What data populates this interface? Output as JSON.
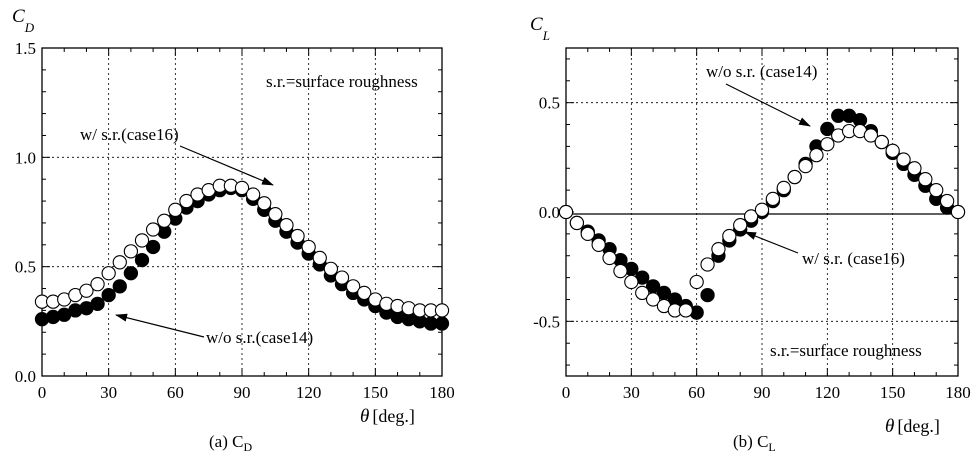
{
  "chart_data": [
    {
      "type": "scatter",
      "panel": "a",
      "caption_main": "(a) C",
      "caption_sub": "D",
      "ylabel_main": "C",
      "ylabel_sub": "D",
      "xlabel_symbol": "θ",
      "xlabel_unit": "[deg.]",
      "xlim": [
        0,
        180
      ],
      "ylim": [
        0,
        1.5
      ],
      "xticks": [
        0,
        30,
        60,
        90,
        120,
        150,
        180
      ],
      "xtick_labels": [
        "0",
        "30",
        "60",
        "90",
        "120",
        "150",
        "180"
      ],
      "yticks": [
        0,
        0.5,
        1.0,
        1.5
      ],
      "ytick_labels": [
        "0.0",
        "0.5",
        "1.0",
        "1.5"
      ],
      "grid": true,
      "zero_line": false,
      "annotations": {
        "legend_note": "s.r.=surface roughness",
        "open_label": "w/  s.r.(case16)",
        "filled_label": "w/o  s.r.(case14)"
      },
      "series": [
        {
          "marker": "filled",
          "x": [
            0,
            5,
            10,
            15,
            20,
            25,
            30,
            35,
            40,
            45,
            50,
            55,
            60,
            65,
            70,
            75,
            80,
            85,
            90,
            95,
            100,
            105,
            110,
            115,
            120,
            125,
            130,
            135,
            140,
            145,
            150,
            155,
            160,
            165,
            170,
            175,
            180
          ],
          "y": [
            0.26,
            0.27,
            0.28,
            0.3,
            0.31,
            0.33,
            0.37,
            0.41,
            0.47,
            0.53,
            0.59,
            0.66,
            0.72,
            0.77,
            0.8,
            0.83,
            0.85,
            0.86,
            0.85,
            0.81,
            0.76,
            0.71,
            0.66,
            0.61,
            0.56,
            0.51,
            0.46,
            0.42,
            0.38,
            0.35,
            0.32,
            0.29,
            0.27,
            0.26,
            0.25,
            0.24,
            0.24
          ]
        },
        {
          "marker": "open",
          "x": [
            0,
            5,
            10,
            15,
            20,
            25,
            30,
            35,
            40,
            45,
            50,
            55,
            60,
            65,
            70,
            75,
            80,
            85,
            90,
            95,
            100,
            105,
            110,
            115,
            120,
            125,
            130,
            135,
            140,
            145,
            150,
            155,
            160,
            165,
            170,
            175,
            180
          ],
          "y": [
            0.34,
            0.34,
            0.35,
            0.37,
            0.39,
            0.42,
            0.47,
            0.52,
            0.57,
            0.62,
            0.67,
            0.71,
            0.76,
            0.8,
            0.83,
            0.85,
            0.87,
            0.87,
            0.86,
            0.83,
            0.79,
            0.74,
            0.69,
            0.64,
            0.59,
            0.54,
            0.49,
            0.45,
            0.41,
            0.38,
            0.35,
            0.33,
            0.32,
            0.31,
            0.3,
            0.3,
            0.3
          ]
        }
      ]
    },
    {
      "type": "scatter",
      "panel": "b",
      "caption_main": "(b) C",
      "caption_sub": "L",
      "ylabel_main": "C",
      "ylabel_sub": "L",
      "xlabel_symbol": "θ",
      "xlabel_unit": "[deg.]",
      "xlim": [
        0,
        180
      ],
      "ylim": [
        -0.75,
        0.75
      ],
      "xticks": [
        0,
        30,
        60,
        90,
        120,
        150,
        180
      ],
      "xtick_labels": [
        "0",
        "30",
        "60",
        "90",
        "120",
        "150",
        "180"
      ],
      "yticks": [
        -0.5,
        0.0,
        0.5
      ],
      "ytick_labels": [
        "-0.5",
        "0.0",
        "0.5"
      ],
      "grid": true,
      "zero_line": true,
      "annotations": {
        "legend_note": "s.r.=surface roughness",
        "open_label": "w/  s.r. (case16)",
        "filled_label": "w/o  s.r. (case14)"
      },
      "series": [
        {
          "marker": "filled",
          "x": [
            0,
            5,
            10,
            15,
            20,
            25,
            30,
            35,
            40,
            45,
            50,
            55,
            60,
            65,
            70,
            75,
            80,
            85,
            90,
            95,
            100,
            105,
            110,
            115,
            120,
            125,
            130,
            135,
            140,
            145,
            150,
            155,
            160,
            165,
            170,
            175,
            180
          ],
          "y": [
            0.0,
            -0.05,
            -0.09,
            -0.13,
            -0.17,
            -0.22,
            -0.26,
            -0.3,
            -0.34,
            -0.37,
            -0.4,
            -0.43,
            -0.46,
            -0.38,
            -0.2,
            -0.13,
            -0.08,
            -0.04,
            0.0,
            0.05,
            0.1,
            0.16,
            0.22,
            0.3,
            0.38,
            0.44,
            0.44,
            0.42,
            0.37,
            0.32,
            0.27,
            0.22,
            0.17,
            0.12,
            0.06,
            0.02,
            0.0
          ]
        },
        {
          "marker": "open",
          "x": [
            0,
            5,
            10,
            15,
            20,
            25,
            30,
            35,
            40,
            45,
            50,
            55,
            60,
            65,
            70,
            75,
            80,
            85,
            90,
            95,
            100,
            105,
            110,
            115,
            120,
            125,
            130,
            135,
            140,
            145,
            150,
            155,
            160,
            165,
            170,
            175,
            180
          ],
          "y": [
            0.0,
            -0.05,
            -0.1,
            -0.15,
            -0.21,
            -0.27,
            -0.32,
            -0.37,
            -0.4,
            -0.43,
            -0.45,
            -0.45,
            -0.32,
            -0.24,
            -0.17,
            -0.11,
            -0.06,
            -0.02,
            0.01,
            0.06,
            0.11,
            0.16,
            0.21,
            0.26,
            0.31,
            0.35,
            0.37,
            0.37,
            0.35,
            0.32,
            0.28,
            0.24,
            0.2,
            0.15,
            0.1,
            0.05,
            0.0
          ]
        }
      ]
    }
  ]
}
